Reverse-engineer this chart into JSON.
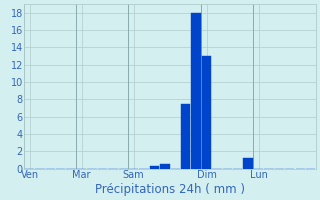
{
  "xlabel": "Précipitations 24h ( mm )",
  "background_color": "#d4efef",
  "bar_color": "#0044cc",
  "grid_color": "#b0cccc",
  "axis_label_color": "#3366bb",
  "tick_label_color": "#3366bb",
  "ylim": [
    0,
    19
  ],
  "yticks": [
    0,
    2,
    4,
    6,
    8,
    10,
    12,
    14,
    16,
    18
  ],
  "num_bars": 28,
  "bar_values": [
    0,
    0,
    0,
    0,
    0,
    0,
    0,
    0,
    0,
    0,
    0,
    0,
    0.3,
    0.5,
    0,
    7.5,
    18,
    13,
    0,
    0,
    0,
    1.2,
    0,
    0,
    0,
    0,
    0,
    0
  ],
  "day_labels": [
    "Ven",
    "Mar",
    "Sam",
    "Dim",
    "Lun"
  ],
  "day_tick_positions": [
    0,
    5,
    10,
    17,
    22
  ],
  "xlabel_fontsize": 8.5,
  "tick_fontsize": 7
}
